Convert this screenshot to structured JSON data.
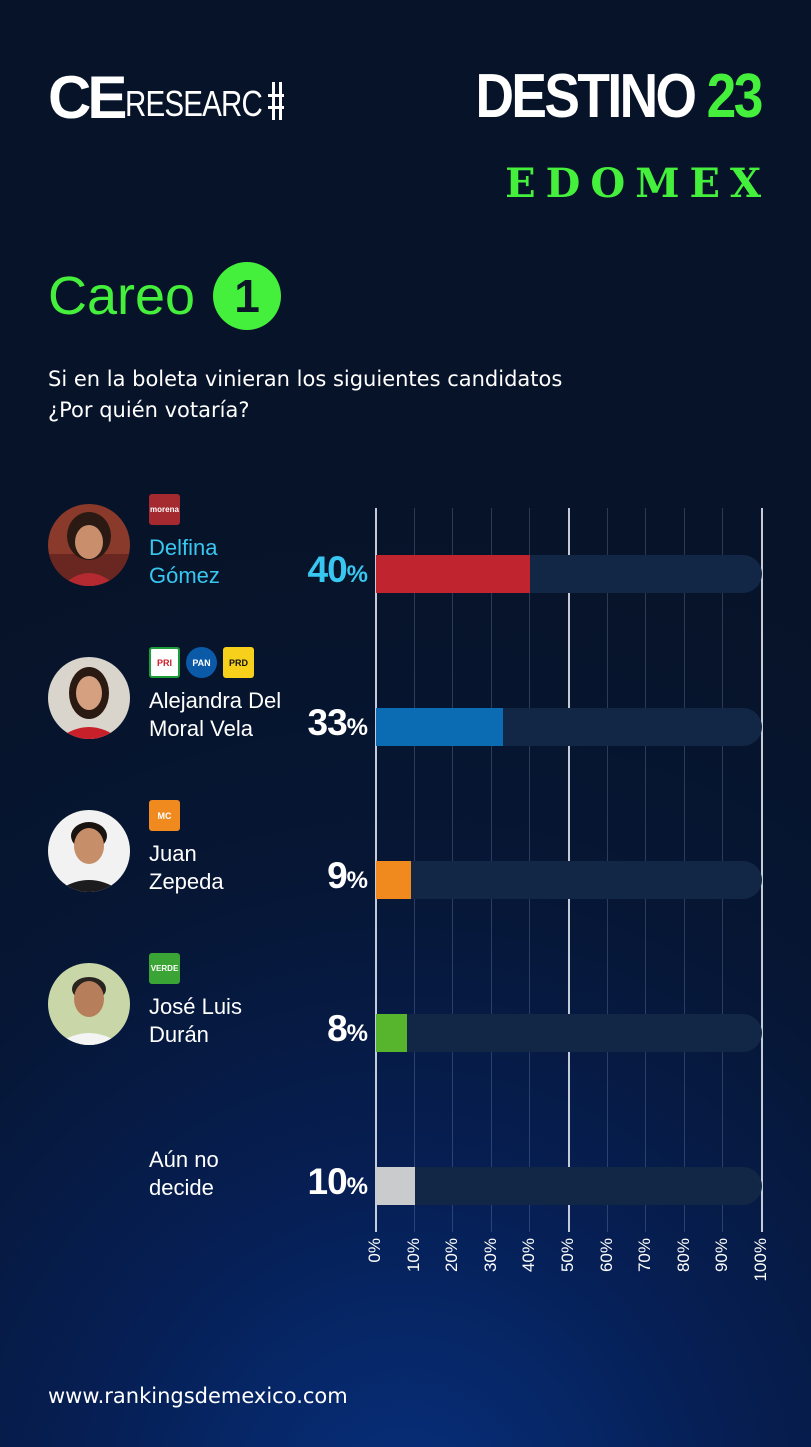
{
  "header": {
    "logo_ce": "CE",
    "logo_research": "RESEARC",
    "destino_word": "DESTINO",
    "destino_num": "23",
    "region": "EDOMEX"
  },
  "careo": {
    "title": "Careo",
    "number": "1"
  },
  "question": {
    "line1": "Si en la boleta vinieran los siguientes candidatos",
    "line2": "¿Por quién votaría?"
  },
  "candidates": [
    {
      "name_line1": "Delfina",
      "name_line2": "Gómez",
      "value": "40",
      "party_logos": [
        "morena"
      ]
    },
    {
      "name_line1": "Alejandra Del",
      "name_line2": "Moral Vela",
      "value": "33",
      "party_logos": [
        "PRI",
        "PAN",
        "PRD"
      ]
    },
    {
      "name_line1": "Juan",
      "name_line2": "Zepeda",
      "value": "9",
      "party_logos": [
        "movimiento-ciudadano"
      ]
    },
    {
      "name_line1": "José Luis",
      "name_line2": "Durán",
      "value": "8",
      "party_logos": [
        "VERDE"
      ]
    },
    {
      "name_line1": "Aún no",
      "name_line2": "decide",
      "value": "10",
      "party_logos": []
    }
  ],
  "percent_symbol": "%",
  "footer": {
    "url": "www.rankingsdemexico.com"
  },
  "colors": {
    "accent_green": "#44f03c",
    "highlight_name": "#38c7f0",
    "track": "#122746"
  },
  "chart_data": {
    "type": "bar",
    "orientation": "horizontal",
    "categories": [
      "Delfina Gómez",
      "Alejandra Del Moral Vela",
      "Juan Zepeda",
      "José Luis Durán",
      "Aún no decide"
    ],
    "values": [
      40,
      33,
      9,
      8,
      10
    ],
    "bar_colors": [
      "#c0252f",
      "#0b6cb4",
      "#f08a1e",
      "#57b52d",
      "#c9cbcd"
    ],
    "xlim": [
      0,
      100
    ],
    "x_ticks": [
      "0%",
      "10%",
      "20%",
      "30%",
      "40%",
      "50%",
      "60%",
      "70%",
      "80%",
      "90%",
      "100%"
    ],
    "grid": true,
    "title": "",
    "xlabel": "",
    "ylabel": ""
  }
}
